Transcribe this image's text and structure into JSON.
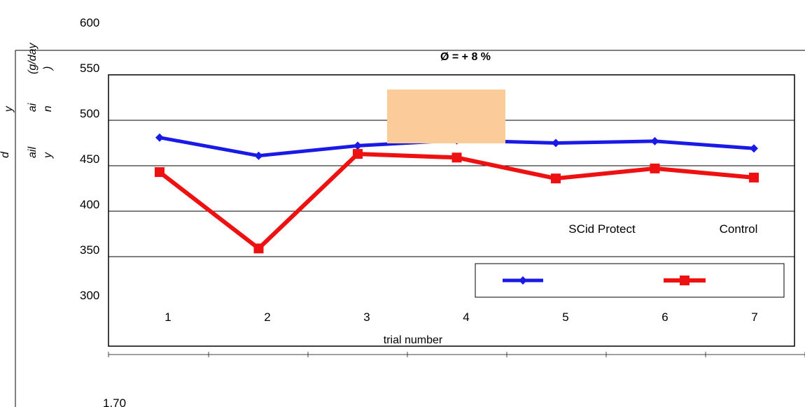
{
  "chart_data": {
    "type": "line",
    "categories": [
      "1",
      "2",
      "3",
      "4",
      "5",
      "6",
      "7"
    ],
    "series": [
      {
        "name": "SCid Protect",
        "values": [
          481,
          461,
          472,
          478,
          475,
          477,
          469
        ]
      },
      {
        "name": "Control",
        "values": [
          443,
          359,
          463,
          459,
          436,
          447,
          437
        ]
      }
    ],
    "ylim": [
      300,
      600
    ],
    "yticks": [
      "300",
      "350",
      "400",
      "450",
      "500",
      "550",
      "600"
    ],
    "xlabel": "trial number",
    "ylabel_fragments": [
      "(g/day",
      ")",
      "y",
      "ai",
      "n",
      "ail",
      "y",
      "d"
    ],
    "annotation": "Ø = + 8 %",
    "stray_text": "1.70",
    "grid": true,
    "legend_position": "bottom-right",
    "colors": {
      "SCid Protect": "#1a1ae6",
      "Control": "#ee1111",
      "highlight_box": "#fbcb9a"
    }
  }
}
